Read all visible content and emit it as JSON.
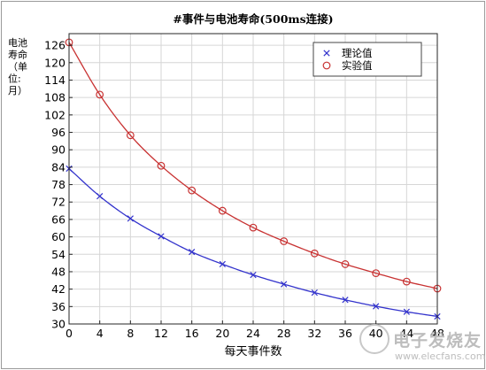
{
  "chart_data": {
    "type": "line",
    "title": "#事件与电池寿命(500ms连接)",
    "xlabel": "每天事件数",
    "ylabel": [
      "电池",
      "寿命",
      "（单",
      "位:",
      "月）"
    ],
    "x": [
      0,
      4,
      8,
      12,
      16,
      20,
      24,
      28,
      32,
      36,
      40,
      44,
      48
    ],
    "xticks": [
      0,
      4,
      8,
      12,
      16,
      20,
      24,
      28,
      32,
      36,
      40,
      44,
      48
    ],
    "xtick_labels": [
      "0",
      "4",
      "8",
      "12",
      "16",
      "20",
      "24",
      "28",
      "32",
      "36",
      "40",
      "44",
      "48"
    ],
    "xlim": [
      0,
      48
    ],
    "ylim": [
      30,
      130
    ],
    "yticks": [
      30,
      36,
      42,
      48,
      54,
      60,
      66,
      72,
      78,
      84,
      90,
      96,
      102,
      108,
      114,
      120,
      126
    ],
    "grid": true,
    "legend_position": "top-right",
    "series": [
      {
        "name": "理论值",
        "marker": "x",
        "color": "#3333cc",
        "values": [
          83.5,
          74,
          66.3,
          60.2,
          54.8,
          50.6,
          46.9,
          43.7,
          40.8,
          38.3,
          36.1,
          34.2,
          32.6
        ]
      },
      {
        "name": "实验值",
        "marker": "o",
        "color": "#c83232",
        "values": [
          127,
          109,
          95,
          84.5,
          76,
          69,
          63.2,
          58.5,
          54.3,
          50.6,
          47.5,
          44.6,
          42.2
        ]
      }
    ]
  },
  "watermark": {
    "text": "电子发烧友",
    "url": "www.elecfans.com"
  }
}
